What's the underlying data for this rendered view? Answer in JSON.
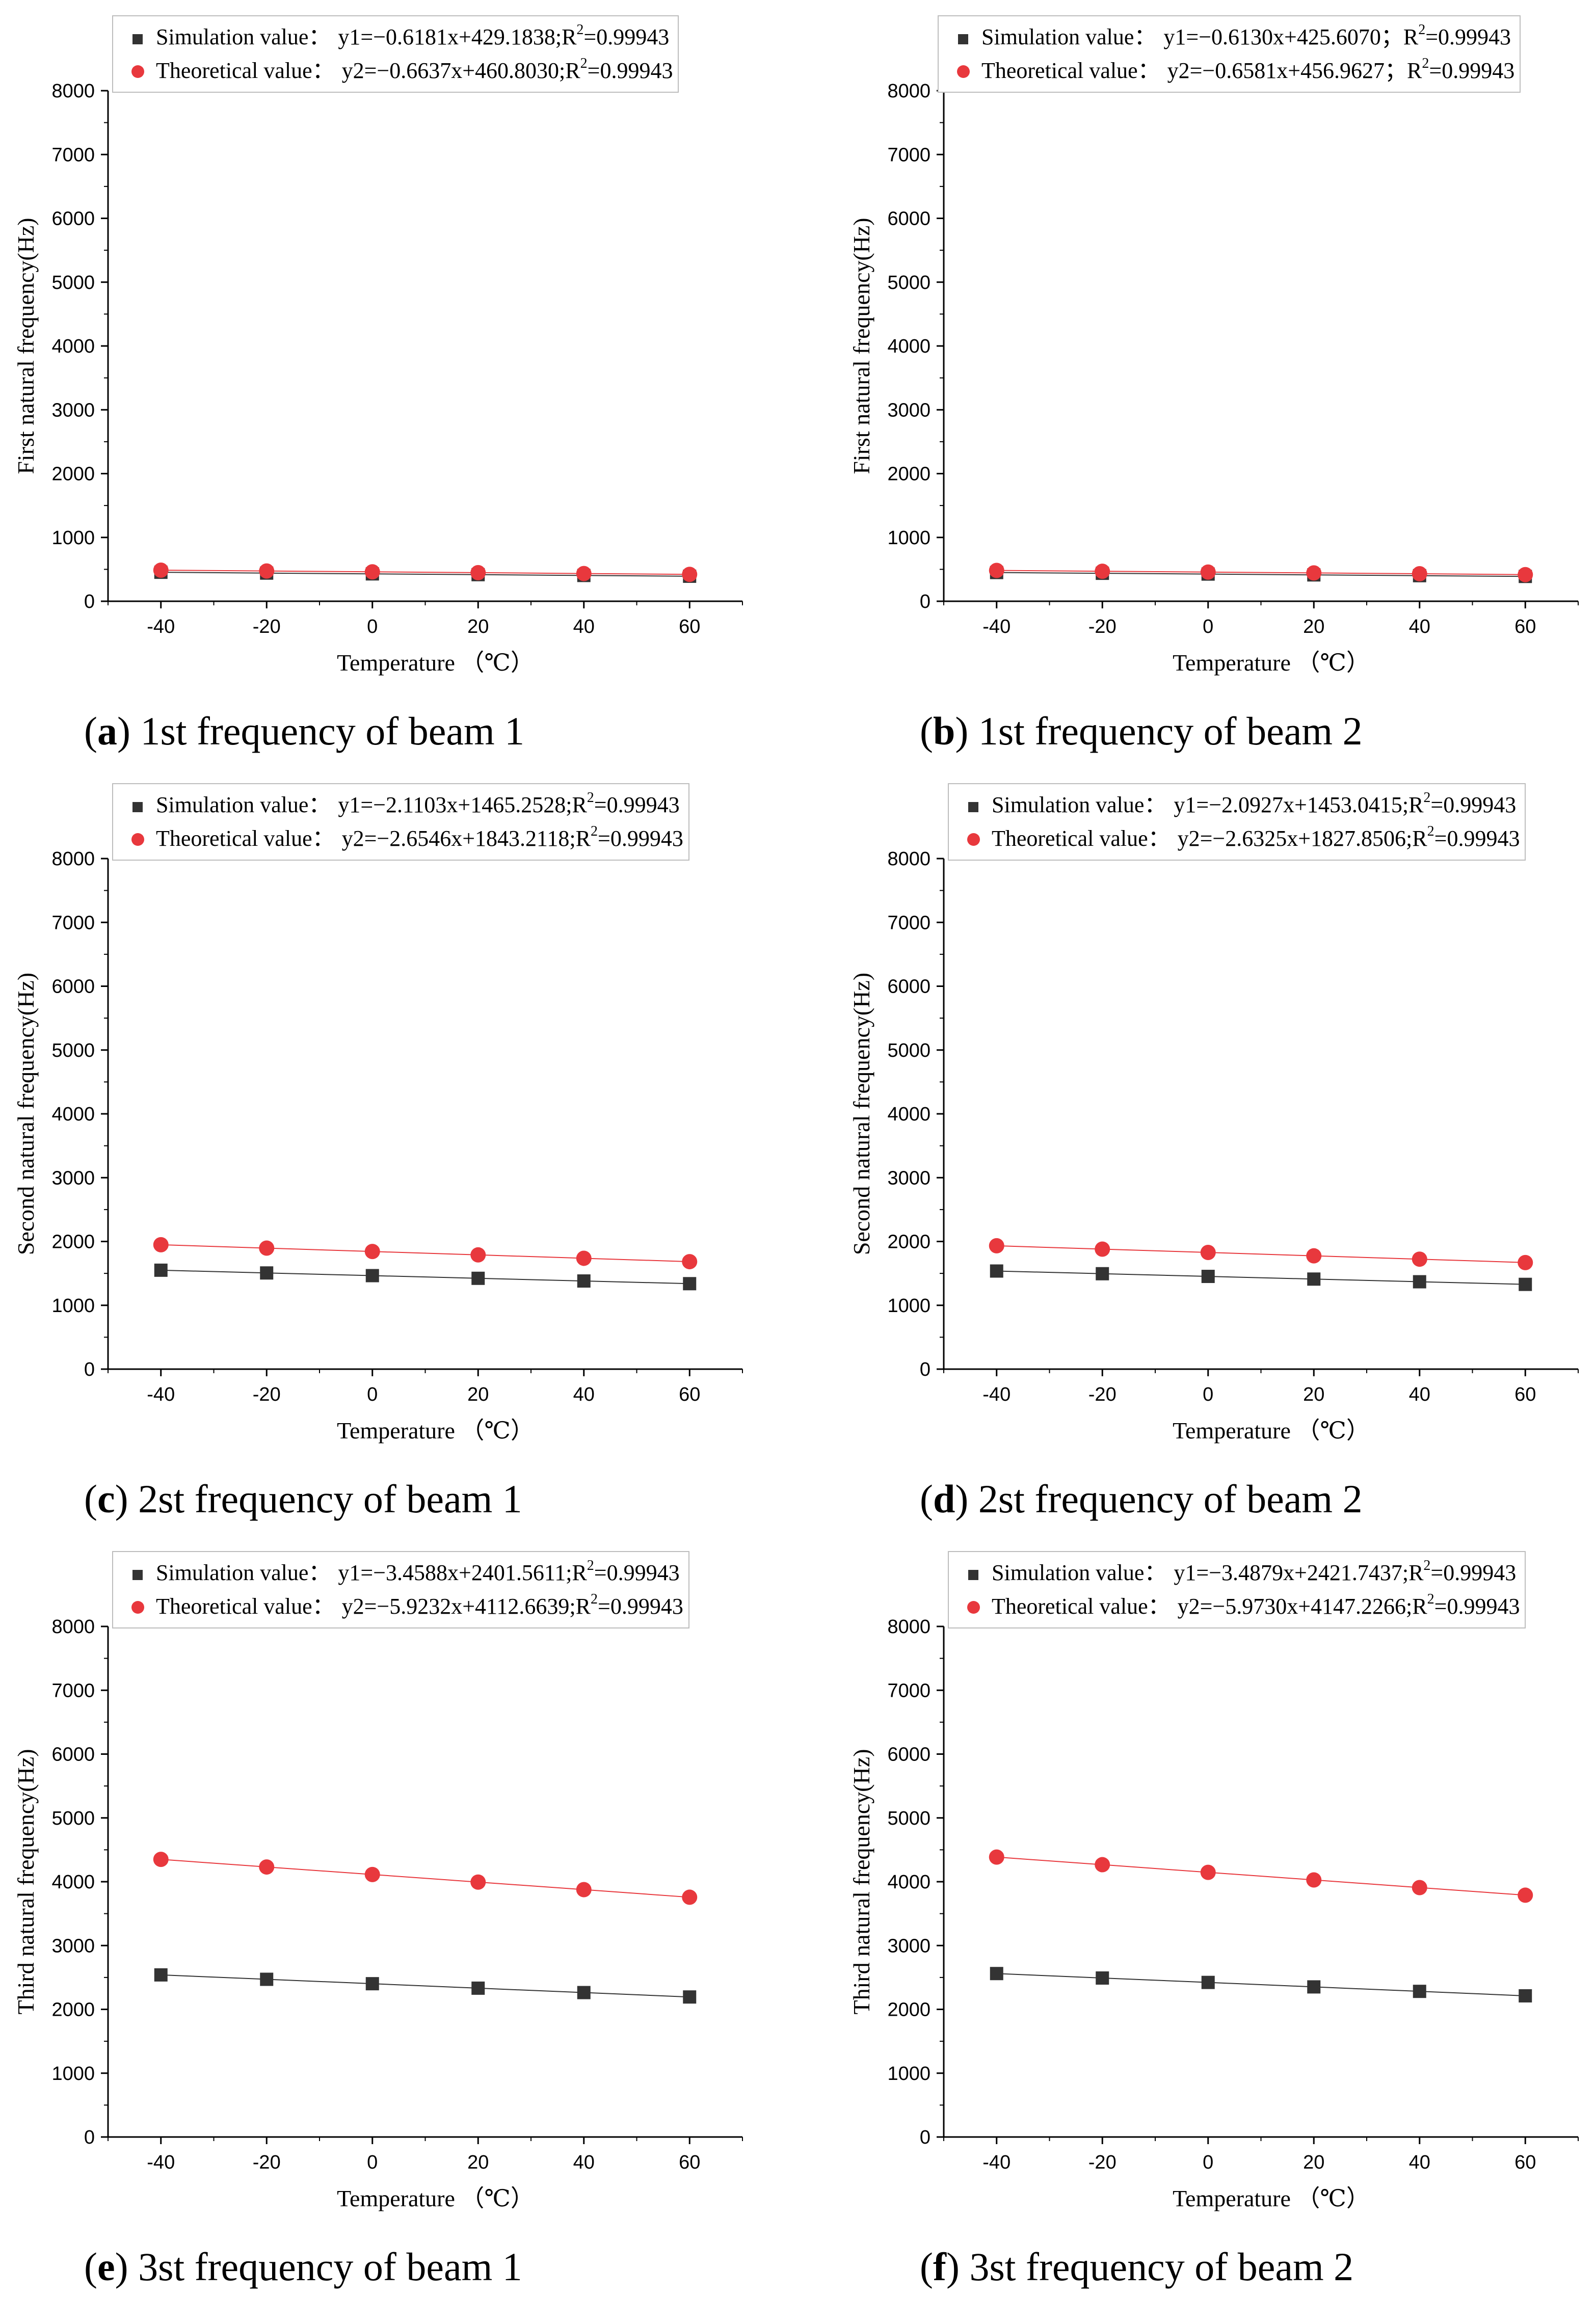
{
  "colors": {
    "simulation": "#333333",
    "theoretical": "#e8383d",
    "axis": "#000000",
    "legend_border": "#bdbdbd"
  },
  "chart_data": [
    {
      "type": "scatter",
      "caption_letter": "a",
      "caption_text": ") 1st frequency of beam 1",
      "xlabel": "Temperature （℃）",
      "ylabel": "First natural frequency(Hz)",
      "xlim": [
        -50,
        70
      ],
      "ylim": [
        0,
        8000
      ],
      "xticks": [
        -40,
        -20,
        0,
        20,
        40,
        60
      ],
      "yticks": [
        0,
        1000,
        2000,
        3000,
        4000,
        5000,
        6000,
        7000,
        8000
      ],
      "legend_placement": "top",
      "x": [
        -40,
        -20,
        0,
        20,
        40,
        60
      ],
      "series": [
        {
          "name": "Simulation value",
          "marker": "square",
          "equation": "y1=−0.6181x+429.1838;R",
          "r2": "=0.99943",
          "values": [
            454,
            441,
            429,
            417,
            404,
            392
          ]
        },
        {
          "name": "Theoretical value",
          "marker": "circle",
          "equation": "y2=−0.6637x+460.8030;R",
          "r2": "=0.99943",
          "values": [
            487,
            474,
            461,
            448,
            434,
            421
          ]
        }
      ]
    },
    {
      "type": "scatter",
      "caption_letter": "b",
      "caption_text": ") 1st frequency of beam 2",
      "xlabel": "Temperature （℃）",
      "ylabel": "First natural frequency(Hz)",
      "xlim": [
        -50,
        70
      ],
      "ylim": [
        0,
        8000
      ],
      "xticks": [
        -40,
        -20,
        0,
        20,
        40,
        60
      ],
      "yticks": [
        0,
        1000,
        2000,
        3000,
        4000,
        5000,
        6000,
        7000,
        8000
      ],
      "legend_placement": "top",
      "x": [
        -40,
        -20,
        0,
        20,
        40,
        60
      ],
      "series": [
        {
          "name": "Simulation value",
          "marker": "square",
          "equation": "y1=−0.6130x+425.6070；R",
          "r2": "=0.99943",
          "values": [
            450,
            438,
            426,
            413,
            401,
            389
          ]
        },
        {
          "name": "Theoretical value",
          "marker": "circle",
          "equation": "y2=−0.6581x+456.9627；R",
          "r2": "=0.99943",
          "values": [
            483,
            470,
            457,
            444,
            431,
            417
          ]
        }
      ]
    },
    {
      "type": "scatter",
      "caption_letter": "c",
      "caption_text": ") 2st frequency of beam 1",
      "xlabel": "Temperature （℃）",
      "ylabel": "Second natural frequency(Hz)",
      "xlim": [
        -50,
        70
      ],
      "ylim": [
        0,
        8000
      ],
      "xticks": [
        -40,
        -20,
        0,
        20,
        40,
        60
      ],
      "yticks": [
        0,
        1000,
        2000,
        3000,
        4000,
        5000,
        6000,
        7000,
        8000
      ],
      "legend_placement": "top",
      "x": [
        -40,
        -20,
        0,
        20,
        40,
        60
      ],
      "series": [
        {
          "name": "Simulation value",
          "marker": "square",
          "equation": "y1=−2.1103x+1465.2528;R",
          "r2": "=0.99943",
          "values": [
            1550,
            1507,
            1465,
            1423,
            1381,
            1339
          ]
        },
        {
          "name": "Theoretical value",
          "marker": "circle",
          "equation": "y2=−2.6546x+1843.2118;R",
          "r2": "=0.99943",
          "values": [
            1949,
            1896,
            1843,
            1790,
            1737,
            1684
          ]
        }
      ]
    },
    {
      "type": "scatter",
      "caption_letter": "d",
      "caption_text": ") 2st frequency of beam 2",
      "xlabel": "Temperature （℃）",
      "ylabel": "Second natural frequency(Hz)",
      "xlim": [
        -50,
        70
      ],
      "ylim": [
        0,
        8000
      ],
      "xticks": [
        -40,
        -20,
        0,
        20,
        40,
        60
      ],
      "yticks": [
        0,
        1000,
        2000,
        3000,
        4000,
        5000,
        6000,
        7000,
        8000
      ],
      "legend_placement": "top",
      "x": [
        -40,
        -20,
        0,
        20,
        40,
        60
      ],
      "series": [
        {
          "name": "Simulation value",
          "marker": "square",
          "equation": "y1=−2.0927x+1453.0415;R",
          "r2": "=0.99943",
          "values": [
            1537,
            1495,
            1453,
            1411,
            1369,
            1328
          ]
        },
        {
          "name": "Theoretical value",
          "marker": "circle",
          "equation": "y2=−2.6325x+1827.8506;R",
          "r2": "=0.99943",
          "values": [
            1933,
            1880,
            1828,
            1775,
            1723,
            1670
          ]
        }
      ]
    },
    {
      "type": "scatter",
      "caption_letter": "e",
      "caption_text": ") 3st frequency of beam 1",
      "xlabel": "Temperature （℃）",
      "ylabel": "Third natural frequency(Hz)",
      "xlim": [
        -50,
        70
      ],
      "ylim": [
        0,
        8000
      ],
      "xticks": [
        -40,
        -20,
        0,
        20,
        40,
        60
      ],
      "yticks": [
        0,
        1000,
        2000,
        3000,
        4000,
        5000,
        6000,
        7000,
        8000
      ],
      "legend_placement": "top",
      "x": [
        -40,
        -20,
        0,
        20,
        40,
        60
      ],
      "series": [
        {
          "name": "Simulation value",
          "marker": "square",
          "equation": "y1=−3.4588x+2401.5611;R",
          "r2": "=0.99943",
          "values": [
            2540,
            2471,
            2402,
            2332,
            2263,
            2194
          ]
        },
        {
          "name": "Theoretical value",
          "marker": "circle",
          "equation": "y2=−5.9232x+4112.6639;R",
          "r2": "=0.99943",
          "values": [
            4350,
            4231,
            4113,
            3994,
            3876,
            3757
          ]
        }
      ]
    },
    {
      "type": "scatter",
      "caption_letter": "f",
      "caption_text": ") 3st frequency of beam 2",
      "xlabel": "Temperature （℃）",
      "ylabel": "Third natural frequency(Hz)",
      "xlim": [
        -50,
        70
      ],
      "ylim": [
        0,
        8000
      ],
      "xticks": [
        -40,
        -20,
        0,
        20,
        40,
        60
      ],
      "yticks": [
        0,
        1000,
        2000,
        3000,
        4000,
        5000,
        6000,
        7000,
        8000
      ],
      "legend_placement": "top",
      "x": [
        -40,
        -20,
        0,
        20,
        40,
        60
      ],
      "series": [
        {
          "name": "Simulation value",
          "marker": "square",
          "equation": "y1=−3.4879x+2421.7437;R",
          "r2": "=0.99943",
          "values": [
            2561,
            2491,
            2422,
            2352,
            2282,
            2212
          ]
        },
        {
          "name": "Theoretical value",
          "marker": "circle",
          "equation": "y2=−5.9730x+4147.2266;R",
          "r2": "=0.99943",
          "values": [
            4386,
            4267,
            4147,
            4028,
            3908,
            3789
          ]
        }
      ]
    }
  ]
}
